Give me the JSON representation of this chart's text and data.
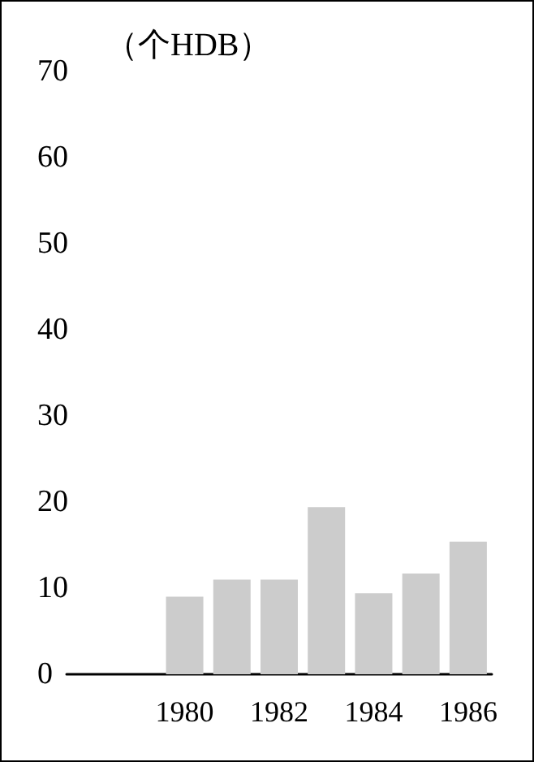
{
  "chart_data": {
    "type": "bar",
    "ylabel": "（个HDB）",
    "categories": [
      null,
      null,
      "1980",
      null,
      "1982",
      null,
      "1984",
      null,
      "1986"
    ],
    "values": [
      null,
      null,
      9.0,
      11.0,
      11.0,
      19.4,
      9.4,
      11.7,
      15.4
    ],
    "color": "#cccccc",
    "ylim": [
      0,
      70
    ],
    "yticks": [
      0,
      10,
      20,
      30,
      40,
      50,
      60,
      70
    ],
    "grid": false
  }
}
